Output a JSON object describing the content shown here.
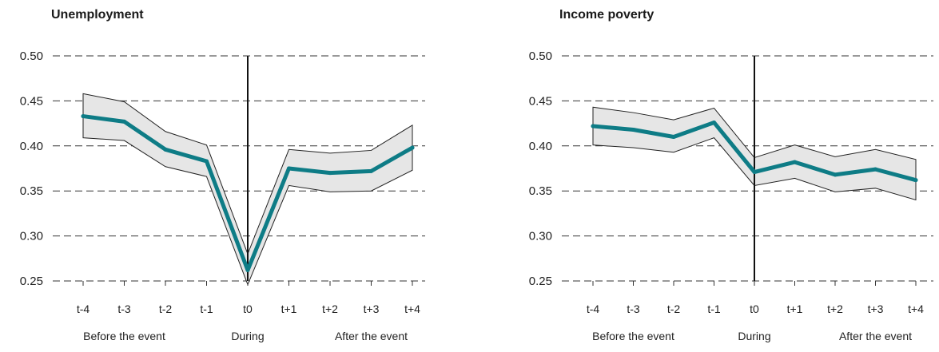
{
  "chart_data": [
    {
      "type": "line",
      "title": "Unemployment",
      "categories": [
        "t-4",
        "t-3",
        "t-2",
        "t-1",
        "t0",
        "t+1",
        "t+2",
        "t+3",
        "t+4"
      ],
      "period_labels": [
        "Before the event",
        "During",
        "After the event"
      ],
      "yticks": [
        "0.50",
        "0.45",
        "0.40",
        "0.35",
        "0.30",
        "0.25"
      ],
      "ylim": [
        0.25,
        0.5
      ],
      "series": [
        {
          "values": [
            0.433,
            0.427,
            0.396,
            0.383,
            0.262,
            0.375,
            0.37,
            0.372,
            0.398
          ],
          "lower": [
            0.409,
            0.406,
            0.377,
            0.366,
            0.246,
            0.356,
            0.349,
            0.35,
            0.373
          ],
          "upper": [
            0.458,
            0.449,
            0.416,
            0.401,
            0.28,
            0.396,
            0.392,
            0.395,
            0.423
          ]
        }
      ],
      "grid": true,
      "vline_at": "t0",
      "colors": {
        "line": "#0e7c86",
        "band": "#e6e6e6"
      }
    },
    {
      "type": "line",
      "title": "Income poverty",
      "categories": [
        "t-4",
        "t-3",
        "t-2",
        "t-1",
        "t0",
        "t+1",
        "t+2",
        "t+3",
        "t+4"
      ],
      "period_labels": [
        "Before the event",
        "During",
        "After the event"
      ],
      "yticks": [
        "0.50",
        "0.45",
        "0.40",
        "0.35",
        "0.30",
        "0.25"
      ],
      "ylim": [
        0.25,
        0.5
      ],
      "series": [
        {
          "values": [
            0.422,
            0.418,
            0.41,
            0.426,
            0.371,
            0.382,
            0.368,
            0.374,
            0.362
          ],
          "lower": [
            0.401,
            0.398,
            0.393,
            0.409,
            0.356,
            0.364,
            0.349,
            0.353,
            0.34
          ],
          "upper": [
            0.443,
            0.437,
            0.429,
            0.442,
            0.387,
            0.401,
            0.388,
            0.396,
            0.385
          ]
        }
      ],
      "grid": true,
      "vline_at": "t0",
      "colors": {
        "line": "#0e7c86",
        "band": "#e6e6e6"
      }
    }
  ]
}
